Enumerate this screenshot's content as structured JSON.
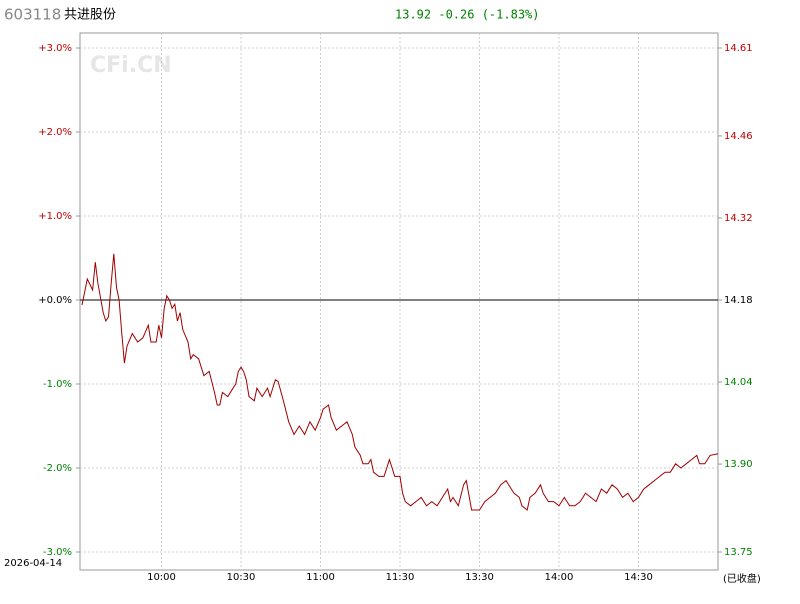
{
  "chart_data": {
    "type": "line",
    "code": "603118",
    "name": "共进股份",
    "quote": "13.92 -0.26 (-1.83%)",
    "quote_color": "#008000",
    "date": "2026-04-14",
    "status": "(已收盘)",
    "watermark": "CFi.CN",
    "color": "#a00000",
    "up_color": "#c00000",
    "down_color": "#008000",
    "grid": true,
    "xlim": [
      0,
      240
    ],
    "xticks": [
      {
        "value": 30,
        "label": "10:00"
      },
      {
        "value": 60,
        "label": "10:30"
      },
      {
        "value": 90,
        "label": "11:00"
      },
      {
        "value": 120,
        "label": "11:30"
      },
      {
        "value": 150,
        "label": "13:30"
      },
      {
        "value": 180,
        "label": "14:00"
      },
      {
        "value": 210,
        "label": "14:30"
      }
    ],
    "ylim": [
      -3,
      3
    ],
    "yticks": [
      {
        "value": 3,
        "label": "+3.0%"
      },
      {
        "value": 2,
        "label": "+2.0%"
      },
      {
        "value": 1,
        "label": "+1.0%"
      },
      {
        "value": 0,
        "label": "+0.0%"
      },
      {
        "value": -1,
        "label": "-1.0%"
      },
      {
        "value": -2,
        "label": "-2.0%"
      },
      {
        "value": -3,
        "label": "-3.0%"
      }
    ],
    "y2lim": [
      13.75,
      14.61
    ],
    "y2ticks": [
      14.61,
      14.46,
      14.32,
      14.18,
      14.04,
      {
        "value": 13.9,
        "label": "13.90"
      },
      13.75
    ],
    "x": [
      0,
      2,
      4,
      5,
      6,
      8,
      9,
      10,
      11,
      12,
      13,
      14,
      15,
      16,
      17,
      19,
      21,
      23,
      25,
      26,
      28,
      29,
      30,
      31,
      32,
      33,
      34,
      35,
      36,
      37,
      38,
      40,
      41,
      42,
      44,
      46,
      48,
      50,
      51,
      52,
      53,
      55,
      57,
      58,
      59,
      60,
      61,
      62,
      63,
      65,
      66,
      68,
      70,
      71,
      73,
      74,
      76,
      78,
      80,
      82,
      84,
      86,
      88,
      90,
      91,
      93,
      94,
      96,
      98,
      100,
      102,
      103,
      105,
      106,
      108,
      109,
      110,
      112,
      114,
      116,
      117,
      118,
      120,
      121,
      122,
      124,
      126,
      128,
      130,
      132,
      134,
      136,
      138,
      139,
      140,
      142,
      144,
      145,
      147,
      150,
      152,
      154,
      156,
      158,
      160,
      162,
      163,
      165,
      166,
      168,
      169,
      171,
      173,
      174,
      176,
      178,
      180,
      182,
      184,
      186,
      188,
      190,
      192,
      194,
      196,
      198,
      200,
      202,
      204,
      206,
      208,
      210,
      212,
      214,
      216,
      218,
      220,
      222,
      224,
      226,
      228,
      230,
      232,
      233,
      235,
      237,
      240
    ],
    "values": [
      -0.06,
      0.25,
      0.12,
      0.45,
      0.2,
      -0.15,
      -0.25,
      -0.2,
      0.2,
      0.55,
      0.15,
      0,
      -0.4,
      -0.75,
      -0.55,
      -0.4,
      -0.5,
      -0.45,
      -0.3,
      -0.5,
      -0.5,
      -0.3,
      -0.45,
      -0.1,
      0.05,
      0,
      -0.1,
      -0.05,
      -0.25,
      -0.15,
      -0.35,
      -0.5,
      -0.7,
      -0.65,
      -0.7,
      -0.9,
      -0.85,
      -1.1,
      -1.25,
      -1.25,
      -1.1,
      -1.15,
      -1.05,
      -1.0,
      -0.85,
      -0.8,
      -0.85,
      -0.95,
      -1.15,
      -1.2,
      -1.05,
      -1.15,
      -1.05,
      -1.15,
      -0.95,
      -0.97,
      -1.2,
      -1.45,
      -1.6,
      -1.5,
      -1.6,
      -1.45,
      -1.55,
      -1.4,
      -1.3,
      -1.25,
      -1.4,
      -1.55,
      -1.5,
      -1.45,
      -1.6,
      -1.75,
      -1.85,
      -1.95,
      -1.95,
      -1.9,
      -2.05,
      -2.1,
      -2.1,
      -1.9,
      -2.0,
      -2.1,
      -2.1,
      -2.3,
      -2.4,
      -2.45,
      -2.4,
      -2.35,
      -2.45,
      -2.4,
      -2.45,
      -2.35,
      -2.25,
      -2.4,
      -2.35,
      -2.45,
      -2.2,
      -2.15,
      -2.5,
      -2.5,
      -2.4,
      -2.35,
      -2.3,
      -2.2,
      -2.15,
      -2.25,
      -2.3,
      -2.35,
      -2.45,
      -2.5,
      -2.35,
      -2.3,
      -2.2,
      -2.3,
      -2.4,
      -2.4,
      -2.45,
      -2.35,
      -2.45,
      -2.45,
      -2.4,
      -2.3,
      -2.35,
      -2.4,
      -2.25,
      -2.3,
      -2.2,
      -2.25,
      -2.35,
      -2.3,
      -2.4,
      -2.35,
      -2.25,
      -2.2,
      -2.15,
      -2.1,
      -2.05,
      -2.05,
      -1.95,
      -2.0,
      -1.95,
      -1.9,
      -1.85,
      -1.95,
      -1.95,
      -1.85,
      -1.83
    ]
  }
}
